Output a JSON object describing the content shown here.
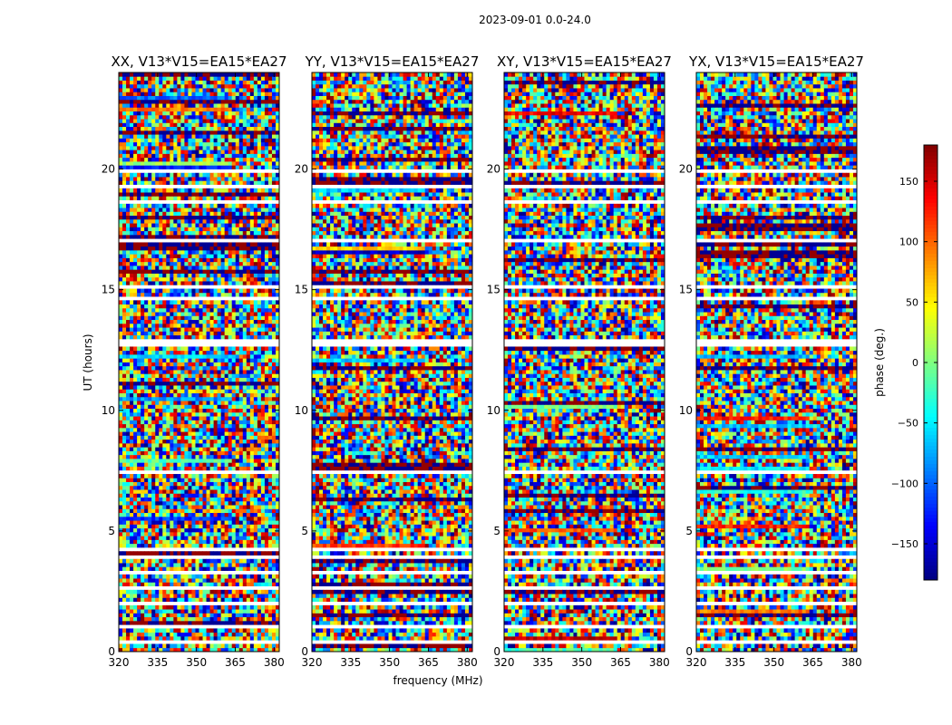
{
  "chart_data": {
    "type": "heatmap",
    "suptitle": "2023-09-01 0.0-24.0",
    "xlabel": "frequency (MHz)",
    "ylabel": "UT (hours)",
    "xlim": [
      320,
      382
    ],
    "ylim": [
      0,
      24
    ],
    "xticks": [
      320,
      335,
      350,
      365,
      380
    ],
    "yticks": [
      0,
      5,
      10,
      15,
      20
    ],
    "panels": [
      {
        "title": "XX, V13*V15=EA15*EA27",
        "id": "xx"
      },
      {
        "title": "YY, V13*V15=EA15*EA27",
        "id": "yy"
      },
      {
        "title": "XY, V13*V15=EA15*EA27",
        "id": "xy"
      },
      {
        "title": "YX, V13*V15=EA15*EA27",
        "id": "yx"
      }
    ],
    "colorbar": {
      "label": "phase (deg.)",
      "range": [
        -180,
        180
      ],
      "ticks": [
        150,
        100,
        50,
        0,
        -50,
        -100,
        -150
      ],
      "tick_labels": [
        "150",
        "100",
        "50",
        "0",
        "−50",
        "−100",
        "−150"
      ],
      "colormap": "jet"
    },
    "blank_ut_bands": [
      0.45,
      1.0,
      2.0,
      2.7,
      3.3,
      3.9,
      4.2,
      7.5,
      12.8,
      14.6,
      15.1,
      17.1,
      18.7,
      19.3,
      19.9
    ]
  }
}
